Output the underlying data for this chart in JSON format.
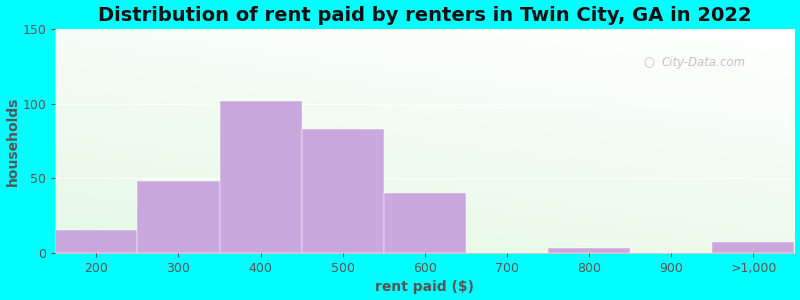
{
  "title": "Distribution of rent paid by renters in Twin City, GA in 2022",
  "xlabel": "rent paid ($)",
  "ylabel": "households",
  "categories": [
    "200",
    "300",
    "400",
    "500",
    "600",
    "700",
    "800",
    "900",
    ">1,000"
  ],
  "values": [
    15,
    48,
    102,
    83,
    40,
    0,
    3,
    0,
    7
  ],
  "bar_color": "#c9a8de",
  "bar_edge_color": "#c9a8de",
  "ylim": [
    0,
    150
  ],
  "yticks": [
    0,
    50,
    100,
    150
  ],
  "title_fontsize": 14,
  "axis_label_fontsize": 10,
  "tick_fontsize": 9,
  "watermark_text": "City-Data.com",
  "watermark_color": "#b0b0b0",
  "figure_facecolor": "#00ffff"
}
